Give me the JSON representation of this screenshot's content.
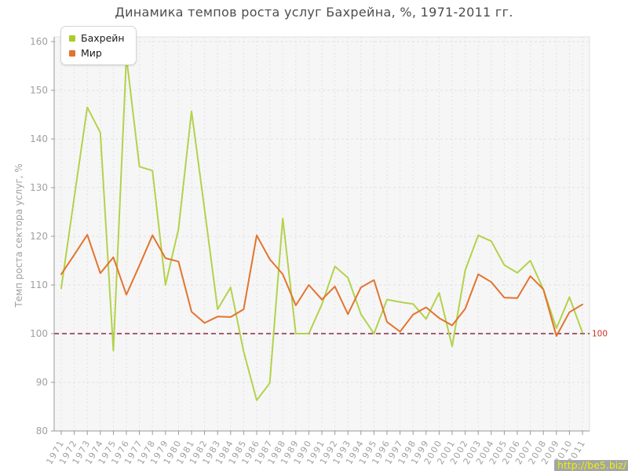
{
  "header": {
    "title": "Динамика темпов роста услуг Бахрейна, %, 1971-2011 гг."
  },
  "legend": {
    "items": [
      {
        "label": "Бахрейн",
        "color": "#aacc28"
      },
      {
        "label": "Мир",
        "color": "#e2742e"
      }
    ]
  },
  "watermark": {
    "text": "http://be5.biz/"
  },
  "colors": {
    "bahrain_line": "#b3d24b",
    "world_line": "#e2742e",
    "reference_line": "#8e2740",
    "reference_label": "#cc3322",
    "axis_text": "#a0a0a0",
    "spine": "#999999",
    "grid": "#e2e2e2",
    "plot_bg": "#f6f6f6",
    "title_text": "#4d4d4d"
  },
  "chart_data": {
    "type": "line",
    "title": "Динамика темпов роста услуг Бахрейна, %, 1971-2011 гг.",
    "xlabel": "",
    "ylabel": "Темп роста сектора услуг, %",
    "ylim": [
      80,
      160
    ],
    "yticks": [
      80,
      90,
      100,
      110,
      120,
      130,
      140,
      150,
      160
    ],
    "grid": true,
    "legend_position": "top-left",
    "reference_line": {
      "value": 100,
      "label": "100"
    },
    "x": [
      1971,
      1972,
      1973,
      1974,
      1975,
      1976,
      1977,
      1978,
      1979,
      1980,
      1981,
      1982,
      1983,
      1984,
      1985,
      1986,
      1987,
      1988,
      1989,
      1990,
      1991,
      1992,
      1993,
      1994,
      1995,
      1996,
      1997,
      1998,
      1999,
      2000,
      2001,
      2002,
      2003,
      2004,
      2005,
      2006,
      2007,
      2008,
      2009,
      2010,
      2011
    ],
    "series": [
      {
        "name": "Бахрейн",
        "values": [
          109.3,
          128.0,
          146.5,
          141.3,
          96.5,
          156.9,
          134.3,
          133.5,
          110.0,
          121.5,
          145.7,
          125.5,
          105.0,
          109.5,
          96.3,
          86.3,
          89.8,
          123.7,
          100.0,
          100.0,
          106.0,
          113.8,
          111.5,
          104.0,
          100.0,
          107.0,
          106.5,
          106.1,
          103.0,
          108.4,
          97.4,
          113.0,
          120.2,
          119.0,
          114.1,
          112.5,
          115.0,
          109.1,
          101.1,
          107.5,
          100.2
        ]
      },
      {
        "name": "Мир",
        "values": [
          112.2,
          116.2,
          120.3,
          112.4,
          115.7,
          108.0,
          114.0,
          120.2,
          115.5,
          114.8,
          104.5,
          102.2,
          103.5,
          103.4,
          105.0,
          120.2,
          115.3,
          112.2,
          105.8,
          110.0,
          107.0,
          109.7,
          104.0,
          109.5,
          111.0,
          102.4,
          100.4,
          103.9,
          105.4,
          103.2,
          101.7,
          105.1,
          112.2,
          110.6,
          107.4,
          107.3,
          111.8,
          109.1,
          99.5,
          104.4,
          106.0
        ]
      }
    ]
  }
}
